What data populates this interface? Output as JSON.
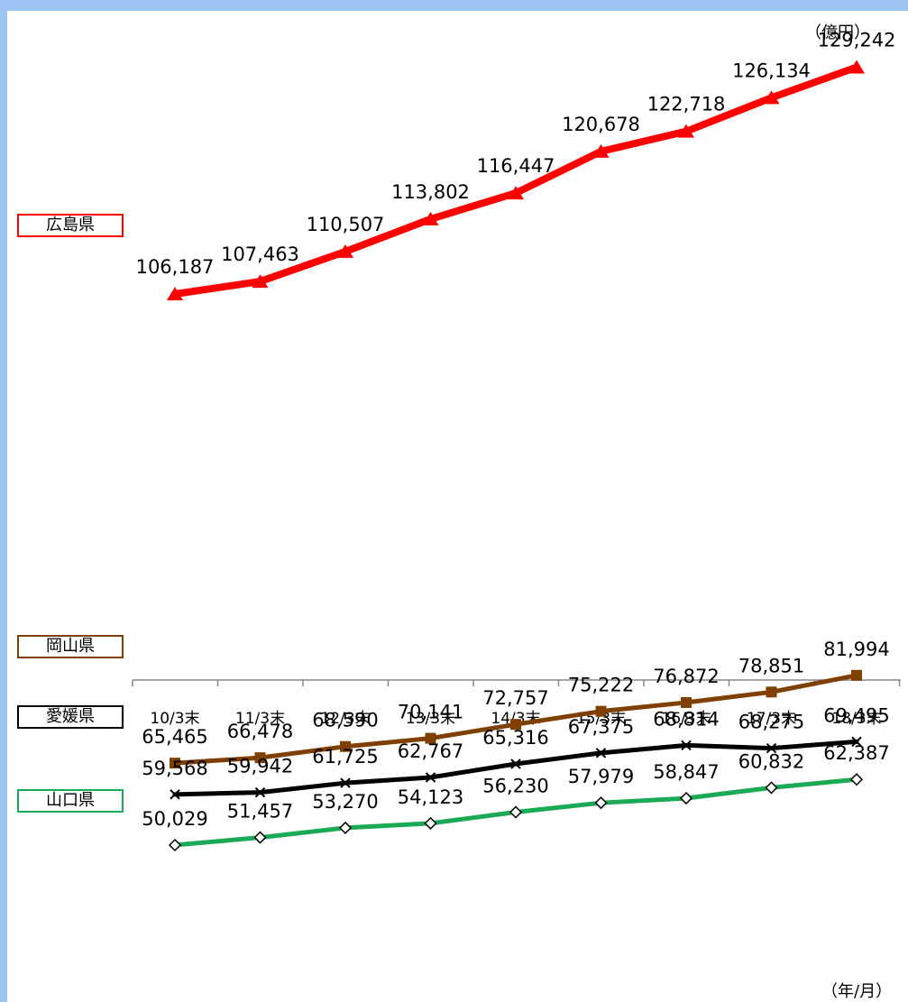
{
  "units": {
    "y": "（億円）",
    "x": "（年/月）"
  },
  "chart_data": {
    "type": "line",
    "categories": [
      "10/3末",
      "11/3末",
      "12/3末",
      "13/3末",
      "14/3末",
      "15/3末",
      "16/3末",
      "17/3末",
      "18/3末"
    ],
    "y_unit": "（億円）",
    "x_unit": "（年/月）",
    "legend_position": "left",
    "grid": false,
    "series": [
      {
        "name": "広島県",
        "color": "#ff0000",
        "marker": "triangle",
        "values": [
          106187,
          107463,
          110507,
          113802,
          116447,
          120678,
          122718,
          126134,
          129242
        ],
        "labels": [
          "106,187",
          "107,463",
          "110,507",
          "113,802",
          "116,447",
          "120,678",
          "122,718",
          "126,134",
          "129,242"
        ]
      },
      {
        "name": "岡山県",
        "color": "#7f3f00",
        "marker": "square",
        "values": [
          65465,
          66478,
          68590,
          70141,
          72757,
          75222,
          76872,
          78851,
          81994
        ],
        "labels": [
          "65,465",
          "66,478",
          "68,590",
          "70,141",
          "72,757",
          "75,222",
          "76,872",
          "78,851",
          "81,994"
        ]
      },
      {
        "name": "愛媛県",
        "color": "#000000",
        "marker": "x",
        "values": [
          59568,
          59942,
          61725,
          62767,
          65316,
          67375,
          68814,
          68275,
          69495
        ],
        "labels": [
          "59,568",
          "59,942",
          "61,725",
          "62,767",
          "65,316",
          "67,375",
          "68,814",
          "68,275",
          "69,495"
        ]
      },
      {
        "name": "山口県",
        "color": "#1aaa55",
        "marker": "diamond",
        "values": [
          50029,
          51457,
          53270,
          54123,
          56230,
          57979,
          58847,
          60832,
          62387
        ],
        "labels": [
          "50,029",
          "51,457",
          "53,270",
          "54,123",
          "56,230",
          "57,979",
          "58,847",
          "60,832",
          "62,387"
        ]
      }
    ]
  }
}
